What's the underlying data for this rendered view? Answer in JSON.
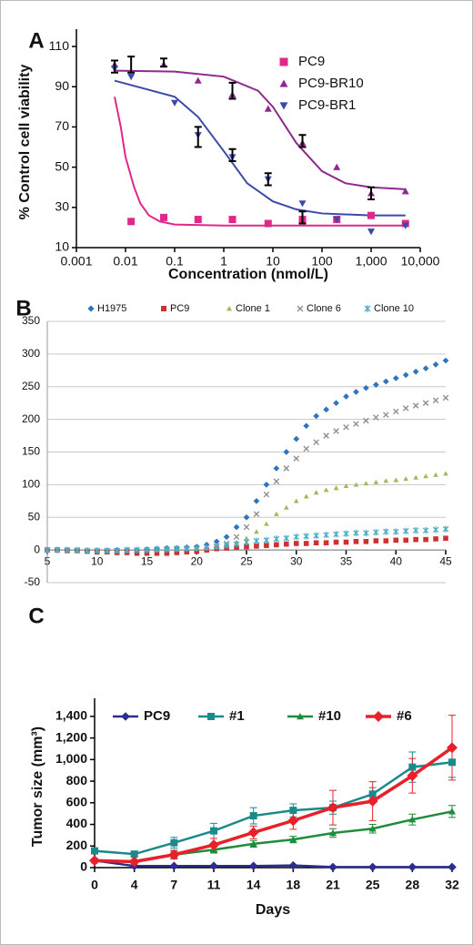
{
  "chart_data": [
    {
      "type": "scatter",
      "panel_label": "A",
      "xlabel": "Concentration (nmol/L)",
      "ylabel": "% Control cell viability",
      "xscale": "log",
      "xlim": [
        0.001,
        10000
      ],
      "ylim": [
        10,
        115
      ],
      "xticks": [
        0.001,
        0.01,
        0.1,
        1,
        10,
        100,
        {
          "value": 1000,
          "label": "1,000"
        },
        {
          "value": 10000,
          "label": "10,000"
        }
      ],
      "yticks": [
        10,
        30,
        50,
        70,
        90,
        110
      ],
      "grid": false,
      "series": [
        {
          "name": "PC9",
          "color": "#e0288a",
          "marker": "square",
          "x": [
            0.013,
            0.06,
            0.3,
            1.5,
            8,
            40,
            200,
            1000,
            5000
          ],
          "values": [
            23,
            25,
            24,
            24,
            22,
            24,
            24,
            26,
            22
          ],
          "fit": {
            "x": [
              0.006,
              0.008,
              0.01,
              0.015,
              0.02,
              0.03,
              0.05,
              0.1,
              1,
              10,
              100,
              1000,
              5000
            ],
            "values": [
              85,
              70,
              55,
              40,
              32,
              26,
              23,
              21.5,
              21,
              21,
              21,
              21,
              21
            ]
          }
        },
        {
          "name": "PC9-BR10",
          "color": "#8e2a8e",
          "marker": "triangle-up",
          "x": [
            0.006,
            0.06,
            0.3,
            1.5,
            8,
            40,
            200,
            1000,
            5000
          ],
          "values": [
            101,
            101,
            93,
            86,
            79,
            62,
            50,
            37,
            38
          ],
          "fit": {
            "x": [
              0.006,
              0.1,
              1,
              5,
              10,
              30,
              100,
              300,
              1000,
              5000
            ],
            "values": [
              98,
              97.5,
              95,
              88,
              80,
              62,
              48,
              42,
              40,
              39
            ]
          }
        },
        {
          "name": "PC9-BR1",
          "color": "#3a4aa8",
          "marker": "triangle-down",
          "x": [
            0.006,
            0.013,
            0.1,
            0.3,
            1.5,
            8,
            40,
            200,
            1000,
            5000
          ],
          "values": [
            99,
            95,
            82,
            66,
            55,
            44,
            32,
            24,
            18,
            21
          ],
          "fit": {
            "x": [
              0.006,
              0.1,
              0.3,
              1,
              3,
              10,
              30,
              100,
              1000,
              5000
            ],
            "values": [
              93,
              85,
              75,
              58,
              42,
              33,
              29,
              27,
              26,
              26
            ]
          }
        }
      ],
      "error_bars": [
        {
          "x": 0.006,
          "value": 100,
          "error": 3
        },
        {
          "x": 0.013,
          "value": 101,
          "error": 4
        },
        {
          "x": 0.06,
          "value": 102,
          "error": 2
        },
        {
          "x": 0.3,
          "value": 65,
          "error": 5
        },
        {
          "x": 1.5,
          "value": 88,
          "error": 4
        },
        {
          "x": 1.5,
          "value": 56,
          "error": 3
        },
        {
          "x": 8,
          "value": 44,
          "error": 3
        },
        {
          "x": 40,
          "value": 63,
          "error": 3
        },
        {
          "x": 40,
          "value": 25,
          "error": 3
        },
        {
          "x": 1000,
          "value": 37,
          "error": 3
        }
      ]
    },
    {
      "type": "scatter",
      "panel_label": "B",
      "xlim": [
        5,
        45
      ],
      "ylim": [
        -50,
        350
      ],
      "xticks": [
        5,
        10,
        15,
        20,
        25,
        30,
        35,
        40,
        45
      ],
      "yticks": [
        -50,
        0,
        50,
        100,
        150,
        200,
        250,
        300,
        350
      ],
      "grid": true,
      "x": [
        5,
        6,
        7,
        8,
        9,
        10,
        11,
        12,
        13,
        14,
        15,
        16,
        17,
        18,
        19,
        20,
        21,
        22,
        23,
        24,
        25,
        26,
        27,
        28,
        29,
        30,
        31,
        32,
        33,
        34,
        35,
        36,
        37,
        38,
        39,
        40,
        41,
        42,
        43,
        44,
        45
      ],
      "series": [
        {
          "name": "H1975",
          "color": "#2e75c0",
          "marker": "diamond",
          "values": [
            0,
            0,
            0,
            -1,
            -1,
            -1,
            -1,
            0,
            0,
            0,
            1,
            2,
            3,
            3,
            4,
            5,
            8,
            13,
            20,
            35,
            50,
            75,
            100,
            125,
            150,
            170,
            190,
            205,
            215,
            225,
            235,
            242,
            248,
            253,
            258,
            263,
            268,
            273,
            278,
            284,
            290
          ]
        },
        {
          "name": "PC9",
          "color": "#d03030",
          "marker": "square",
          "values": [
            0,
            0,
            -1,
            -1,
            -2,
            -3,
            -3,
            -4,
            -4,
            -5,
            -5,
            -5,
            -5,
            -4,
            -3,
            -2,
            0,
            2,
            3,
            4,
            5,
            6,
            7,
            8,
            9,
            10,
            10,
            11,
            11,
            12,
            12,
            13,
            13,
            14,
            14,
            15,
            15,
            16,
            16,
            17,
            18
          ]
        },
        {
          "name": "Clone 1",
          "color": "#9bbb59",
          "marker": "triangle-up",
          "values": [
            0,
            0,
            0,
            -1,
            -1,
            -1,
            -1,
            -1,
            -1,
            0,
            0,
            0,
            1,
            1,
            2,
            2,
            3,
            5,
            8,
            12,
            18,
            28,
            40,
            55,
            65,
            75,
            82,
            88,
            92,
            95,
            98,
            100,
            102,
            104,
            106,
            107,
            109,
            111,
            113,
            115,
            117
          ]
        },
        {
          "name": "Clone 6",
          "color": "#8a8a8a",
          "marker": "x",
          "values": [
            0,
            0,
            0,
            -1,
            -1,
            -1,
            -1,
            -1,
            0,
            0,
            0,
            1,
            1,
            2,
            2,
            3,
            4,
            6,
            10,
            20,
            35,
            55,
            85,
            105,
            125,
            140,
            155,
            165,
            175,
            182,
            188,
            193,
            198,
            203,
            207,
            212,
            217,
            221,
            225,
            229,
            233
          ]
        },
        {
          "name": "Clone 10",
          "color": "#4bacc6",
          "marker": "asterisk",
          "values": [
            0,
            0,
            0,
            0,
            -1,
            -1,
            -1,
            -1,
            0,
            0,
            0,
            1,
            1,
            2,
            2,
            3,
            4,
            5,
            7,
            9,
            12,
            14,
            15,
            17,
            18,
            20,
            21,
            22,
            23,
            24,
            25,
            26,
            26,
            27,
            28,
            28,
            29,
            30,
            30,
            31,
            32
          ]
        }
      ]
    },
    {
      "type": "line",
      "panel_label": "C",
      "xlabel": "Days",
      "ylabel": "Tumor size (mm³)",
      "categories": [
        "0",
        "4",
        "7",
        "11",
        "14",
        "18",
        "21",
        "25",
        "28",
        "32"
      ],
      "ylim": [
        0,
        1500
      ],
      "yticks": [
        0,
        200,
        400,
        600,
        800,
        {
          "value": 1000,
          "label": "1,000"
        },
        {
          "value": 1200,
          "label": "1,200"
        },
        {
          "value": 1400,
          "label": "1,400"
        }
      ],
      "grid": false,
      "series": [
        {
          "name": "PC9",
          "color": "#2b2e8c",
          "marker": "diamond",
          "values": [
            65,
            15,
            15,
            15,
            15,
            20,
            5,
            5,
            5,
            5
          ],
          "errors": [
            10,
            5,
            5,
            5,
            5,
            5,
            3,
            3,
            3,
            3
          ]
        },
        {
          "name": "#1",
          "color": "#1a8a8a",
          "marker": "square",
          "values": [
            155,
            125,
            230,
            340,
            480,
            530,
            555,
            680,
            930,
            975
          ],
          "errors": [
            20,
            15,
            50,
            70,
            75,
            60,
            60,
            60,
            140,
            140
          ]
        },
        {
          "name": "#10",
          "color": "#1e8c3a",
          "marker": "triangle-up",
          "values": [
            65,
            60,
            120,
            165,
            220,
            260,
            320,
            360,
            445,
            520
          ],
          "errors": [
            10,
            10,
            30,
            30,
            30,
            30,
            40,
            40,
            50,
            55
          ]
        },
        {
          "name": "#6",
          "color": "#e8202a",
          "marker": "diamond",
          "values": [
            65,
            55,
            120,
            210,
            325,
            435,
            555,
            615,
            850,
            1110
          ],
          "errors": [
            10,
            10,
            40,
            60,
            60,
            80,
            160,
            180,
            160,
            300
          ]
        }
      ]
    }
  ]
}
